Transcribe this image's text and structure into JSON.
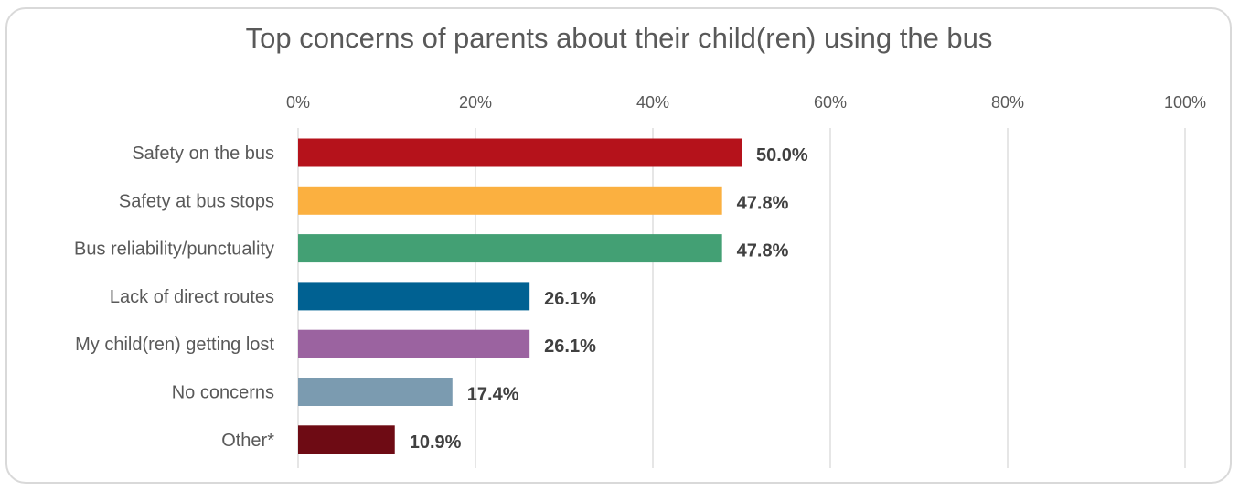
{
  "chart_data": {
    "type": "bar",
    "orientation": "horizontal",
    "title": "Top concerns of parents about their child(ren) using the bus",
    "categories": [
      "Safety on the bus",
      "Safety at bus stops",
      "Bus reliability/punctuality",
      "Lack of direct routes",
      "My child(ren) getting lost",
      "No concerns",
      "Other*"
    ],
    "values": [
      50.0,
      47.8,
      47.8,
      26.1,
      26.1,
      17.4,
      10.9
    ],
    "value_labels": [
      "50.0%",
      "47.8%",
      "47.8%",
      "26.1%",
      "26.1%",
      "17.4%",
      "10.9%"
    ],
    "colors": [
      "#b5121b",
      "#fbb040",
      "#43a074",
      "#006192",
      "#9b63a0",
      "#7b9bb0",
      "#6e0b14"
    ],
    "x_ticks": [
      0,
      20,
      40,
      60,
      80,
      100
    ],
    "x_tick_labels": [
      "0%",
      "20%",
      "40%",
      "60%",
      "80%",
      "100%"
    ],
    "xlim": [
      0,
      100
    ],
    "x_axis_position": "top",
    "grid": true,
    "legend": "none"
  }
}
